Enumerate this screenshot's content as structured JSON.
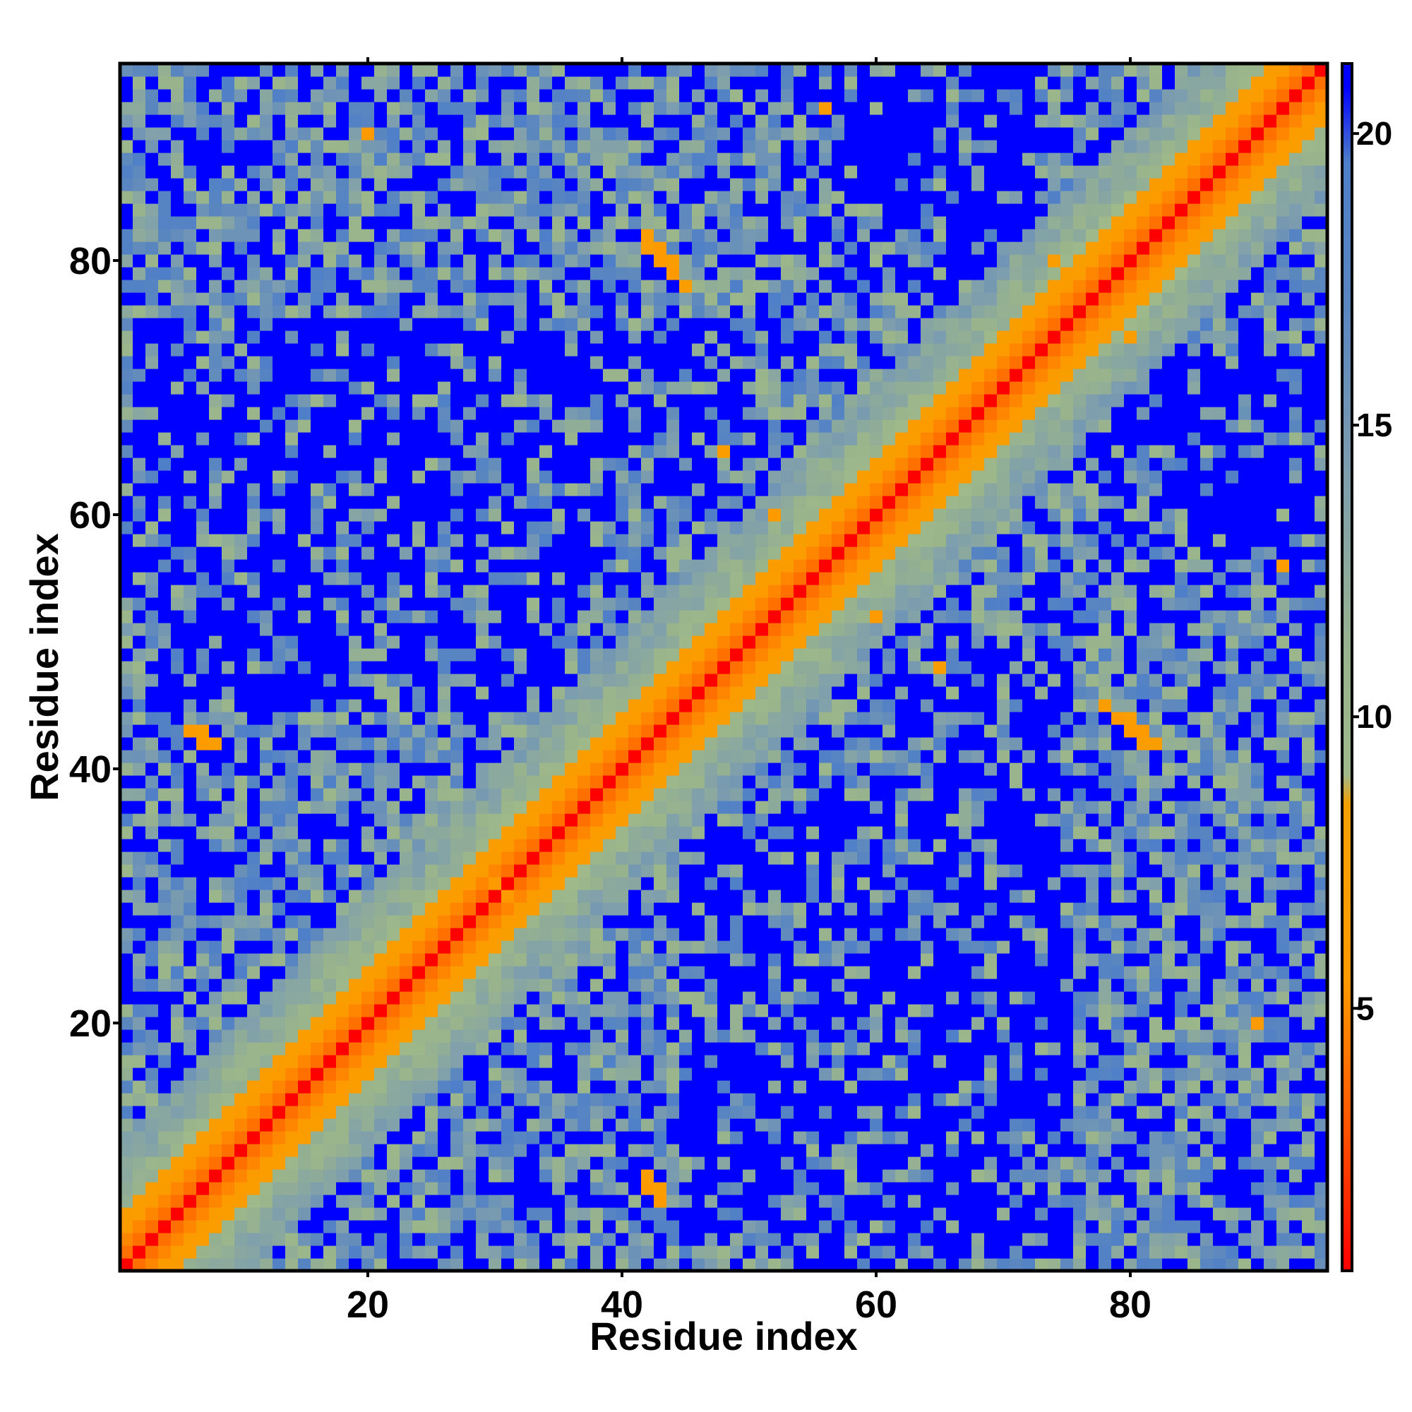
{
  "chart_data": {
    "type": "heatmap",
    "title": "",
    "xlabel": "Residue index",
    "ylabel": "Residue index",
    "n_residues": 95,
    "xlim": [
      0.5,
      95.5
    ],
    "ylim": [
      0.5,
      95.5
    ],
    "x_ticks": [
      20,
      40,
      60,
      80
    ],
    "y_ticks": [
      20,
      40,
      60,
      80
    ],
    "color_scale": {
      "min": 0.5,
      "max": 21.2,
      "ticks": [
        5,
        10,
        15,
        20
      ],
      "stops": [
        {
          "value": 0.5,
          "color": "#ff0000"
        },
        {
          "value": 3.0,
          "color": "#ff5500"
        },
        {
          "value": 5.5,
          "color": "#ff9900"
        },
        {
          "value": 8.5,
          "color": "#f5a000"
        },
        {
          "value": 9.0,
          "color": "#9fb98a"
        },
        {
          "value": 11.0,
          "color": "#99b48c"
        },
        {
          "value": 14.0,
          "color": "#7f9fad"
        },
        {
          "value": 17.0,
          "color": "#5a86c0"
        },
        {
          "value": 19.5,
          "color": "#4f7fc8"
        },
        {
          "value": 20.8,
          "color": "#0000ff"
        },
        {
          "value": 21.2,
          "color": "#0000ff"
        }
      ]
    },
    "colors": {
      "near": "#ff0000",
      "mid": "#ff9900",
      "background": "#0000ff"
    },
    "contact_patches": [
      {
        "x": 42,
        "y": 81,
        "value": 7
      },
      {
        "x": 43,
        "y": 80,
        "value": 6
      },
      {
        "x": 44,
        "y": 79,
        "value": 6
      },
      {
        "x": 45,
        "y": 78,
        "value": 7
      },
      {
        "x": 8,
        "y": 42,
        "value": 7
      },
      {
        "x": 7,
        "y": 43,
        "value": 7
      },
      {
        "x": 42,
        "y": 7,
        "value": 6
      },
      {
        "x": 43,
        "y": 6,
        "value": 6
      },
      {
        "x": 80,
        "y": 44,
        "value": 7
      },
      {
        "x": 81,
        "y": 43,
        "value": 6
      },
      {
        "x": 82,
        "y": 42,
        "value": 7
      },
      {
        "x": 52,
        "y": 60,
        "value": 6
      },
      {
        "x": 60,
        "y": 52,
        "value": 6
      },
      {
        "x": 48,
        "y": 65,
        "value": 7
      },
      {
        "x": 65,
        "y": 48,
        "value": 7
      },
      {
        "x": 74,
        "y": 80,
        "value": 7
      },
      {
        "x": 80,
        "y": 74,
        "value": 7
      },
      {
        "x": 20,
        "y": 90,
        "value": 6
      },
      {
        "x": 56,
        "y": 92,
        "value": 7
      },
      {
        "x": 92,
        "y": 56,
        "value": 7
      },
      {
        "x": 30,
        "y": 31,
        "value": 6
      },
      {
        "x": 22,
        "y": 26,
        "value": 7
      }
    ]
  }
}
